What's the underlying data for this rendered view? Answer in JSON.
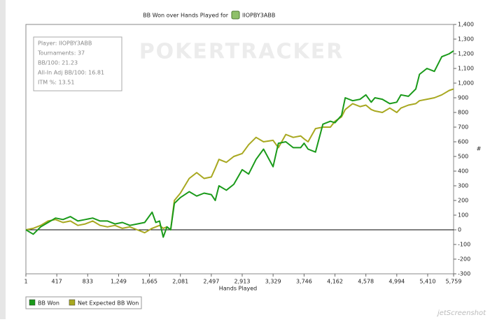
{
  "chart_data": {
    "type": "line",
    "title": "BB Won over Hands Played for",
    "player": "IIOPBY3ABB",
    "watermark": "POKERTRACKER",
    "stats": [
      "Player: IIOPBY3ABB",
      "Tournaments: 37",
      "BB/100: 21.23",
      "All-In Adj BB/100: 16.81",
      "ITM %: 13.51"
    ],
    "x_label": "Hands Played",
    "y_label": "#",
    "credit": "jetScreenshot",
    "x": [
      1,
      100,
      200,
      300,
      400,
      500,
      600,
      700,
      800,
      900,
      1000,
      1100,
      1200,
      1300,
      1400,
      1500,
      1600,
      1700,
      1750,
      1800,
      1850,
      1900,
      1950,
      2000,
      2081,
      2200,
      2300,
      2400,
      2497,
      2550,
      2600,
      2700,
      2800,
      2913,
      3000,
      3100,
      3200,
      3329,
      3400,
      3500,
      3600,
      3700,
      3746,
      3800,
      3900,
      4000,
      4100,
      4162,
      4250,
      4300,
      4400,
      4500,
      4578,
      4650,
      4700,
      4800,
      4900,
      4994,
      5050,
      5150,
      5250,
      5300,
      5400,
      5500,
      5600,
      5700,
      5759
    ],
    "series": [
      {
        "name": "BB Won",
        "color": "#1a9a1a",
        "values": [
          0,
          -30,
          20,
          50,
          80,
          70,
          90,
          60,
          70,
          80,
          60,
          60,
          40,
          50,
          30,
          40,
          50,
          120,
          50,
          60,
          -50,
          20,
          0,
          180,
          220,
          260,
          230,
          250,
          240,
          200,
          300,
          270,
          310,
          410,
          380,
          480,
          550,
          430,
          590,
          600,
          560,
          560,
          590,
          550,
          530,
          720,
          740,
          730,
          780,
          900,
          880,
          890,
          920,
          870,
          900,
          890,
          860,
          870,
          920,
          910,
          960,
          1060,
          1100,
          1080,
          1180,
          1200,
          1220
        ]
      },
      {
        "name": "Net Expected BB Won",
        "color": "#a8a820",
        "values": [
          0,
          10,
          30,
          60,
          70,
          50,
          60,
          30,
          40,
          60,
          30,
          20,
          30,
          10,
          20,
          0,
          -20,
          10,
          20,
          30,
          10,
          20,
          0,
          200,
          250,
          350,
          390,
          350,
          360,
          420,
          480,
          460,
          500,
          520,
          580,
          630,
          600,
          610,
          560,
          650,
          630,
          640,
          620,
          600,
          690,
          700,
          700,
          740,
          770,
          820,
          860,
          840,
          850,
          820,
          810,
          800,
          830,
          800,
          830,
          850,
          860,
          880,
          890,
          900,
          920,
          950,
          960
        ]
      }
    ],
    "xlim": [
      1,
      5759
    ],
    "xticks": [
      1,
      417,
      833,
      {
        "value": 1249,
        "label": "1,249"
      },
      {
        "value": 1665,
        "label": "1,665"
      },
      {
        "value": 2081,
        "label": "2,081"
      },
      {
        "value": 2497,
        "label": "2,497"
      },
      {
        "value": 2913,
        "label": "2,913"
      },
      {
        "value": 3329,
        "label": "3,329"
      },
      {
        "value": 3746,
        "label": "3,746"
      },
      {
        "value": 4162,
        "label": "4,162"
      },
      {
        "value": 4578,
        "label": "4,578"
      },
      {
        "value": 4994,
        "label": "4,994"
      },
      {
        "value": 5410,
        "label": "5,410"
      },
      {
        "value": 5759,
        "label": "5,759"
      }
    ],
    "ylim": [
      -300,
      1400
    ],
    "yticks": [
      -300,
      -200,
      -100,
      0,
      100,
      200,
      300,
      400,
      500,
      600,
      700,
      800,
      900,
      {
        "value": 1000,
        "label": "1,000"
      },
      {
        "value": 1100,
        "label": "1,100"
      },
      {
        "value": 1200,
        "label": "1,200"
      },
      {
        "value": 1300,
        "label": "1,300"
      },
      {
        "value": 1400,
        "label": "1,400"
      }
    ],
    "zero_line": true,
    "legend": "bottom-left"
  }
}
